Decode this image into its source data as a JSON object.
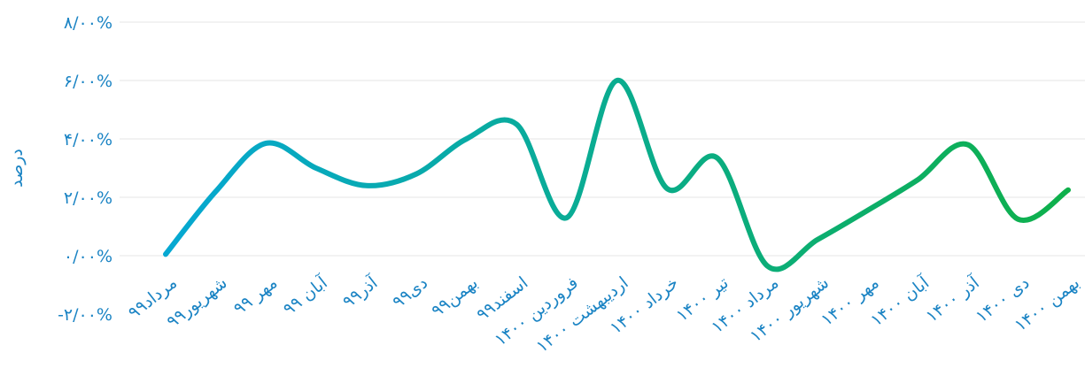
{
  "chart_data": {
    "type": "line",
    "title": "",
    "xlabel": "",
    "ylabel": "درصد",
    "ylim": [
      -2,
      8
    ],
    "grid": true,
    "legend": "none",
    "y_tick_labels": [
      "-۲/۰۰%",
      "۰/۰۰%",
      "۲/۰۰%",
      "۴/۰۰%",
      "۶/۰۰%",
      "۸/۰۰%"
    ],
    "categories": [
      "مرداد۹۹",
      "شهریور۹۹",
      "مهر ۹۹",
      "آبان ۹۹",
      "آذر۹۹",
      "دی۹۹",
      "بهمن۹۹",
      "اسفند۹۹",
      "فروردین ۱۴۰۰",
      "اردیبهشت ۱۴۰۰",
      "خرداد ۱۴۰۰",
      "تیر ۱۴۰۰",
      "مرداد ۱۴۰۰",
      "شهریور ۱۴۰۰",
      "مهر ۱۴۰۰",
      "آبان ۱۴۰۰",
      "آذر ۱۴۰۰",
      "دی ۱۴۰۰",
      "بهمن ۱۴۰۰"
    ],
    "series": [
      {
        "values": [
          0.05,
          2.2,
          3.85,
          3.0,
          2.4,
          2.8,
          4.0,
          4.5,
          1.3,
          6.0,
          2.3,
          3.35,
          -0.35,
          0.55,
          1.55,
          2.6,
          3.8,
          1.25,
          2.25
        ]
      }
    ],
    "colors": {
      "line_start": "#06a8d2",
      "line_end": "#0eb04b",
      "tick_text": "#1b84c4",
      "grid": "#e6e6e6"
    }
  }
}
